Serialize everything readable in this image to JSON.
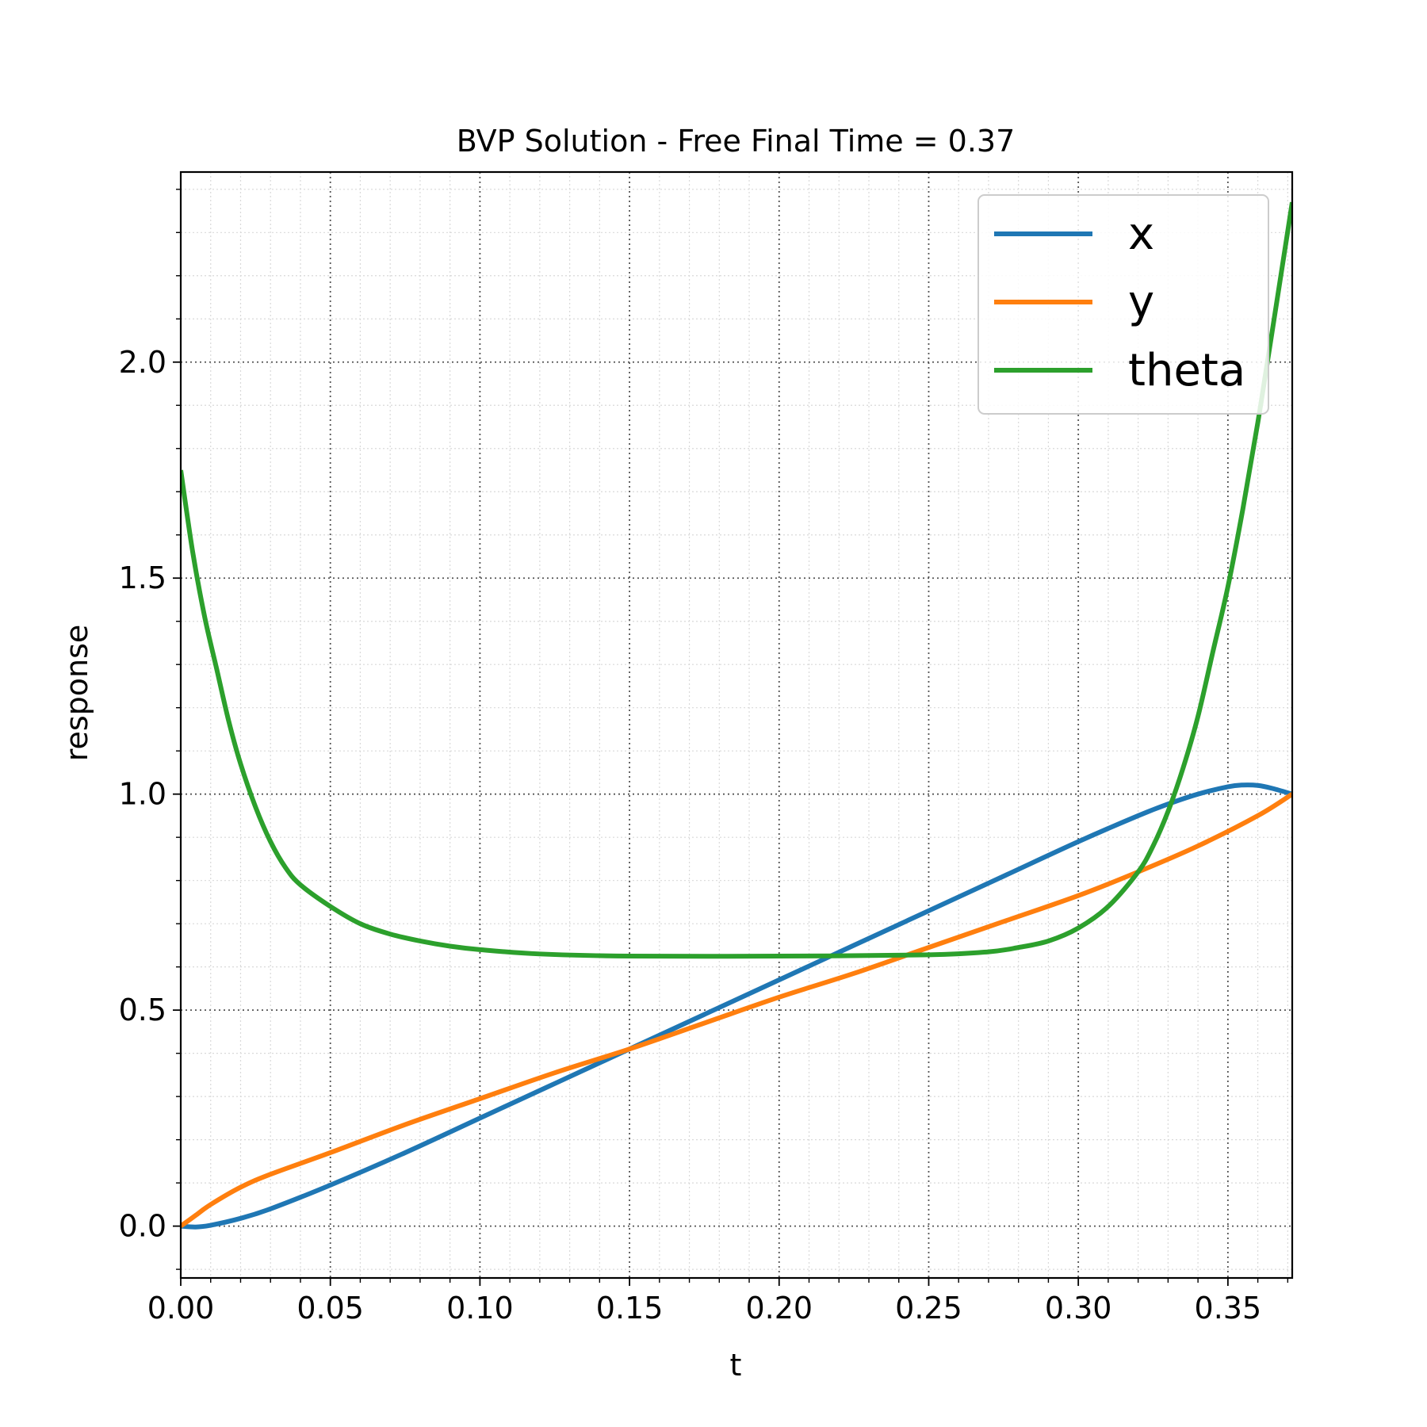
{
  "chart_data": {
    "type": "line",
    "title": "BVP Solution - Free Final Time = 0.37",
    "xlabel": "t",
    "ylabel": "response",
    "xlim": [
      0.0,
      0.3715
    ],
    "ylim": [
      -0.12,
      2.44
    ],
    "xticks": [
      "0.00",
      "0.05",
      "0.10",
      "0.15",
      "0.20",
      "0.25",
      "0.30",
      "0.35"
    ],
    "yticks": [
      "0.0",
      "0.5",
      "1.0",
      "1.5",
      "2.0"
    ],
    "grid": {
      "major": true,
      "minor": true
    },
    "legend_position": "top-right",
    "series": [
      {
        "name": "x",
        "color": "#1f77b4",
        "x": [
          0.0,
          0.005,
          0.01,
          0.02,
          0.03,
          0.05,
          0.075,
          0.1,
          0.125,
          0.15,
          0.175,
          0.2,
          0.225,
          0.25,
          0.275,
          0.3,
          0.32,
          0.33,
          0.34,
          0.35,
          0.355,
          0.36,
          0.365,
          0.3715
        ],
        "y": [
          0.0,
          -0.002,
          0.002,
          0.018,
          0.04,
          0.095,
          0.17,
          0.25,
          0.33,
          0.41,
          0.49,
          0.57,
          0.65,
          0.73,
          0.81,
          0.89,
          0.95,
          0.977,
          1.0,
          1.017,
          1.021,
          1.02,
          1.013,
          1.0
        ]
      },
      {
        "name": "y",
        "color": "#ff7f0e",
        "x": [
          0.0,
          0.005,
          0.01,
          0.02,
          0.03,
          0.05,
          0.075,
          0.1,
          0.125,
          0.15,
          0.175,
          0.2,
          0.225,
          0.25,
          0.275,
          0.3,
          0.32,
          0.34,
          0.36,
          0.3715
        ],
        "y": [
          0.0,
          0.025,
          0.05,
          0.09,
          0.12,
          0.17,
          0.235,
          0.295,
          0.355,
          0.41,
          0.47,
          0.53,
          0.585,
          0.645,
          0.705,
          0.765,
          0.82,
          0.88,
          0.95,
          1.0
        ]
      },
      {
        "name": "theta",
        "color": "#2ca02c",
        "x": [
          0.0,
          0.004,
          0.008,
          0.012,
          0.016,
          0.02,
          0.025,
          0.03,
          0.035,
          0.04,
          0.05,
          0.06,
          0.07,
          0.08,
          0.09,
          0.1,
          0.12,
          0.15,
          0.2,
          0.25,
          0.27,
          0.28,
          0.29,
          0.3,
          0.31,
          0.32,
          0.325,
          0.33,
          0.335,
          0.34,
          0.345,
          0.35,
          0.355,
          0.36,
          0.365,
          0.3715
        ],
        "y": [
          1.75,
          1.56,
          1.41,
          1.29,
          1.17,
          1.07,
          0.97,
          0.89,
          0.83,
          0.79,
          0.74,
          0.7,
          0.676,
          0.66,
          0.648,
          0.64,
          0.63,
          0.625,
          0.625,
          0.628,
          0.635,
          0.645,
          0.66,
          0.69,
          0.74,
          0.82,
          0.88,
          0.96,
          1.06,
          1.18,
          1.33,
          1.48,
          1.66,
          1.86,
          2.08,
          2.37
        ]
      }
    ]
  }
}
